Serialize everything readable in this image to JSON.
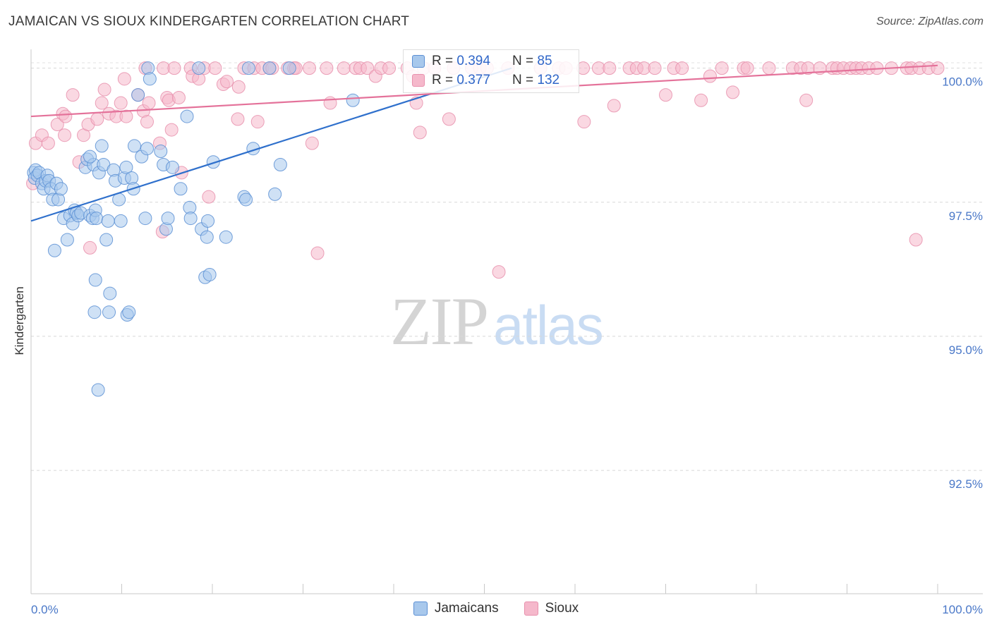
{
  "header": {
    "title": "JAMAICAN VS SIOUX KINDERGARTEN CORRELATION CHART",
    "source": "Source: ZipAtlas.com"
  },
  "watermark": {
    "zip": "ZIP",
    "atlas": "atlas"
  },
  "legend_top": {
    "rows": [
      {
        "r_label": "R = ",
        "r_value": "0.394",
        "n_label": "N = ",
        "n_value": "85"
      },
      {
        "r_label": "R = ",
        "r_value": "0.377",
        "n_label": "N = ",
        "n_value": "132"
      }
    ]
  },
  "legend_bottom": {
    "items": [
      "Jamaicans",
      "Sioux"
    ]
  },
  "colors": {
    "blue_fill": "#a8c8ec",
    "blue_stroke": "#5b8fd4",
    "blue_line": "#2f70cc",
    "pink_fill": "#f5b8cb",
    "pink_stroke": "#e890ad",
    "pink_line": "#e4729a"
  },
  "chart_data": {
    "type": "scatter",
    "title": "JAMAICAN VS SIOUX KINDERGARTEN CORRELATION CHART",
    "xlabel": "",
    "ylabel": "Kindergarten",
    "xlim": [
      0,
      100
    ],
    "ylim": [
      90.2,
      100.35
    ],
    "x_tick_labels": [
      "0.0%",
      "100.0%"
    ],
    "y_ticks": [
      92.5,
      95.0,
      97.5,
      100.0
    ],
    "y_tick_labels": [
      "92.5%",
      "95.0%",
      "97.5%",
      "100.0%"
    ],
    "series": [
      {
        "name": "Jamaicans",
        "R": 0.394,
        "N": 85,
        "trend": {
          "x0": 0,
          "y0": 97.15,
          "x1": 53,
          "y1": 100.0
        },
        "points": [
          [
            0.3,
            98.05
          ],
          [
            0.4,
            97.95
          ],
          [
            0.5,
            98.1
          ],
          [
            0.7,
            98.0
          ],
          [
            0.9,
            98.05
          ],
          [
            1.2,
            97.85
          ],
          [
            1.4,
            97.75
          ],
          [
            1.6,
            97.9
          ],
          [
            1.8,
            98.0
          ],
          [
            2.0,
            97.9
          ],
          [
            2.2,
            97.75
          ],
          [
            2.4,
            97.55
          ],
          [
            2.6,
            96.6
          ],
          [
            2.8,
            97.85
          ],
          [
            3.0,
            97.55
          ],
          [
            3.3,
            97.75
          ],
          [
            3.6,
            97.2
          ],
          [
            4.0,
            96.8
          ],
          [
            4.3,
            97.25
          ],
          [
            4.6,
            97.1
          ],
          [
            4.8,
            97.35
          ],
          [
            5.0,
            97.3
          ],
          [
            5.2,
            97.25
          ],
          [
            5.5,
            97.3
          ],
          [
            6.0,
            98.15
          ],
          [
            6.2,
            98.3
          ],
          [
            6.5,
            97.25
          ],
          [
            6.8,
            97.2
          ],
          [
            6.9,
            98.2
          ],
          [
            6.5,
            98.35
          ],
          [
            7.1,
            97.35
          ],
          [
            7.2,
            97.2
          ],
          [
            7.1,
            96.05
          ],
          [
            7.0,
            95.45
          ],
          [
            7.4,
            94.0
          ],
          [
            7.5,
            98.05
          ],
          [
            7.8,
            98.55
          ],
          [
            8.0,
            98.2
          ],
          [
            8.3,
            96.8
          ],
          [
            8.5,
            97.15
          ],
          [
            8.6,
            95.45
          ],
          [
            8.7,
            95.8
          ],
          [
            9.1,
            98.1
          ],
          [
            9.3,
            97.9
          ],
          [
            9.7,
            97.55
          ],
          [
            9.9,
            97.15
          ],
          [
            10.3,
            97.95
          ],
          [
            10.5,
            98.15
          ],
          [
            10.6,
            95.4
          ],
          [
            10.8,
            95.45
          ],
          [
            11.1,
            97.95
          ],
          [
            11.3,
            97.75
          ],
          [
            11.4,
            98.55
          ],
          [
            11.8,
            99.5
          ],
          [
            12.2,
            98.35
          ],
          [
            12.8,
            98.5
          ],
          [
            12.6,
            97.2
          ],
          [
            12.9,
            100.0
          ],
          [
            13.1,
            99.8
          ],
          [
            14.3,
            98.45
          ],
          [
            14.6,
            98.2
          ],
          [
            14.9,
            97.0
          ],
          [
            15.1,
            97.2
          ],
          [
            15.6,
            98.15
          ],
          [
            16.5,
            97.75
          ],
          [
            17.2,
            99.1
          ],
          [
            17.5,
            97.4
          ],
          [
            17.6,
            97.2
          ],
          [
            18.5,
            100.0
          ],
          [
            18.8,
            97.0
          ],
          [
            19.2,
            96.1
          ],
          [
            19.4,
            96.85
          ],
          [
            19.5,
            97.15
          ],
          [
            19.7,
            96.15
          ],
          [
            20.1,
            98.25
          ],
          [
            21.5,
            96.85
          ],
          [
            23.5,
            97.6
          ],
          [
            23.7,
            97.55
          ],
          [
            24.0,
            100.0
          ],
          [
            24.5,
            98.5
          ],
          [
            26.3,
            100.0
          ],
          [
            26.9,
            97.65
          ],
          [
            27.5,
            98.2
          ],
          [
            28.5,
            100.0
          ],
          [
            35.5,
            99.4
          ]
        ]
      },
      {
        "name": "Sioux",
        "R": 0.377,
        "N": 132,
        "trend": {
          "x0": 0,
          "y0": 99.1,
          "x1": 100,
          "y1": 100.05
        },
        "points": [
          [
            0.2,
            97.85
          ],
          [
            0.5,
            98.6
          ],
          [
            1.2,
            98.75
          ],
          [
            1.9,
            98.6
          ],
          [
            2.9,
            98.95
          ],
          [
            3.5,
            99.15
          ],
          [
            3.8,
            99.1
          ],
          [
            3.7,
            98.75
          ],
          [
            4.6,
            99.5
          ],
          [
            5.3,
            98.25
          ],
          [
            5.8,
            98.75
          ],
          [
            6.3,
            98.95
          ],
          [
            6.5,
            96.65
          ],
          [
            7.3,
            99.05
          ],
          [
            7.8,
            99.35
          ],
          [
            8.1,
            99.6
          ],
          [
            8.6,
            99.15
          ],
          [
            9.4,
            99.1
          ],
          [
            9.9,
            99.35
          ],
          [
            10.3,
            99.8
          ],
          [
            10.5,
            99.1
          ],
          [
            12.4,
            99.2
          ],
          [
            12.8,
            99.0
          ],
          [
            13.0,
            99.35
          ],
          [
            11.8,
            99.5
          ],
          [
            12.6,
            100.0
          ],
          [
            14.2,
            98.6
          ],
          [
            14.5,
            96.95
          ],
          [
            14.6,
            100.0
          ],
          [
            15.0,
            99.45
          ],
          [
            15.2,
            99.4
          ],
          [
            15.5,
            98.85
          ],
          [
            15.8,
            100.0
          ],
          [
            16.3,
            99.45
          ],
          [
            16.6,
            98.05
          ],
          [
            17.6,
            100.0
          ],
          [
            17.8,
            99.85
          ],
          [
            18.5,
            99.8
          ],
          [
            19.1,
            100.0
          ],
          [
            19.6,
            97.6
          ],
          [
            20.3,
            100.0
          ],
          [
            21.2,
            99.7
          ],
          [
            21.6,
            99.75
          ],
          [
            22.8,
            99.05
          ],
          [
            22.9,
            99.65
          ],
          [
            23.5,
            100.0
          ],
          [
            24.6,
            100.0
          ],
          [
            25.0,
            99.0
          ],
          [
            25.5,
            100.0
          ],
          [
            26.3,
            100.0
          ],
          [
            26.6,
            100.0
          ],
          [
            28.3,
            100.0
          ],
          [
            29.0,
            100.0
          ],
          [
            29.2,
            100.0
          ],
          [
            30.7,
            100.0
          ],
          [
            31.0,
            98.6
          ],
          [
            31.6,
            96.55
          ],
          [
            32.6,
            100.0
          ],
          [
            33.0,
            99.35
          ],
          [
            34.5,
            100.0
          ],
          [
            35.8,
            100.0
          ],
          [
            36.3,
            100.0
          ],
          [
            37.1,
            100.0
          ],
          [
            38.0,
            99.85
          ],
          [
            38.6,
            100.0
          ],
          [
            39.5,
            100.0
          ],
          [
            41.5,
            100.0
          ],
          [
            42.5,
            99.35
          ],
          [
            43.3,
            100.0
          ],
          [
            42.1,
            99.85
          ],
          [
            42.9,
            98.8
          ],
          [
            44.5,
            100.0
          ],
          [
            46.1,
            99.05
          ],
          [
            46.6,
            100.0
          ],
          [
            48.6,
            100.0
          ],
          [
            49.5,
            100.0
          ],
          [
            50.3,
            100.0
          ],
          [
            51.6,
            96.2
          ],
          [
            52.6,
            100.0
          ],
          [
            56.2,
            100.0
          ],
          [
            58.2,
            100.0
          ],
          [
            59.0,
            100.0
          ],
          [
            60.9,
            100.0
          ],
          [
            61.0,
            99.0
          ],
          [
            62.6,
            100.0
          ],
          [
            63.8,
            100.0
          ],
          [
            64.3,
            99.3
          ],
          [
            66.0,
            100.0
          ],
          [
            66.8,
            100.0
          ],
          [
            67.6,
            100.0
          ],
          [
            68.8,
            100.0
          ],
          [
            70.0,
            99.5
          ],
          [
            70.9,
            100.0
          ],
          [
            71.8,
            100.0
          ],
          [
            73.9,
            99.4
          ],
          [
            74.9,
            99.85
          ],
          [
            76.2,
            100.0
          ],
          [
            77.4,
            99.55
          ],
          [
            78.6,
            100.0
          ],
          [
            79.0,
            100.0
          ],
          [
            81.4,
            100.0
          ],
          [
            84.0,
            100.0
          ],
          [
            84.9,
            100.0
          ],
          [
            85.5,
            99.4
          ],
          [
            85.7,
            100.0
          ],
          [
            87.0,
            100.0
          ],
          [
            88.4,
            100.0
          ],
          [
            88.9,
            100.0
          ],
          [
            89.6,
            100.0
          ],
          [
            90.4,
            100.0
          ],
          [
            91.0,
            100.0
          ],
          [
            91.6,
            100.0
          ],
          [
            92.4,
            100.0
          ],
          [
            93.3,
            100.0
          ],
          [
            94.9,
            100.0
          ],
          [
            96.6,
            100.0
          ],
          [
            97.1,
            100.0
          ],
          [
            97.6,
            96.8
          ],
          [
            98.0,
            100.0
          ],
          [
            99.0,
            100.0
          ],
          [
            100.0,
            100.0
          ]
        ]
      }
    ]
  }
}
